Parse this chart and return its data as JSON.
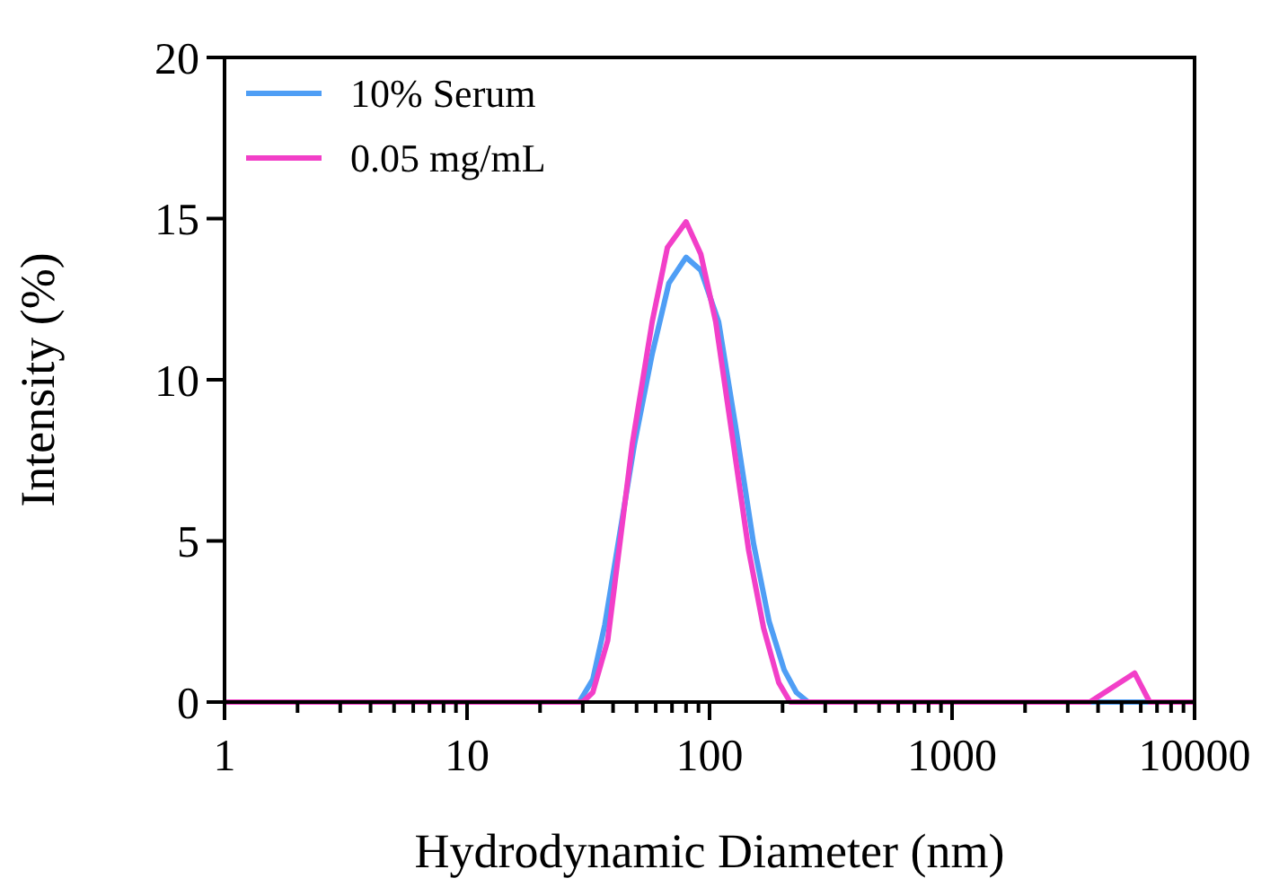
{
  "chart_data": {
    "type": "line",
    "xlabel": "Hydrodynamic Diameter (nm)",
    "ylabel": "Intensity (%)",
    "log": "x",
    "xlim": [
      1,
      10000
    ],
    "ylim": [
      0,
      20
    ],
    "xticks": [
      1,
      {
        "value": 2,
        "label": null
      },
      {
        "value": 3,
        "label": null
      },
      {
        "value": 4,
        "label": null
      },
      {
        "value": 5,
        "label": null
      },
      {
        "value": 6,
        "label": null
      },
      {
        "value": 7,
        "label": null
      },
      {
        "value": 8,
        "label": null
      },
      {
        "value": 9,
        "label": null
      },
      10,
      {
        "value": 20,
        "label": null
      },
      {
        "value": 30,
        "label": null
      },
      {
        "value": 40,
        "label": null
      },
      {
        "value": 50,
        "label": null
      },
      {
        "value": 60,
        "label": null
      },
      {
        "value": 70,
        "label": null
      },
      {
        "value": 80,
        "label": null
      },
      {
        "value": 90,
        "label": null
      },
      100,
      {
        "value": 200,
        "label": null
      },
      {
        "value": 300,
        "label": null
      },
      {
        "value": 400,
        "label": null
      },
      {
        "value": 500,
        "label": null
      },
      {
        "value": 600,
        "label": null
      },
      {
        "value": 700,
        "label": null
      },
      {
        "value": 800,
        "label": null
      },
      {
        "value": 900,
        "label": null
      },
      1000,
      {
        "value": 2000,
        "label": null
      },
      {
        "value": 3000,
        "label": null
      },
      {
        "value": 4000,
        "label": null
      },
      {
        "value": 5000,
        "label": null
      },
      {
        "value": 6000,
        "label": null
      },
      {
        "value": 7000,
        "label": null
      },
      {
        "value": 8000,
        "label": null
      },
      {
        "value": 9000,
        "label": null
      },
      10000
    ],
    "yticks": [
      0,
      5,
      10,
      15,
      20
    ],
    "grid": false,
    "legend": "top left",
    "marker": "none",
    "line_style": "solid",
    "series": [
      {
        "name": "10% Serum",
        "color": "#4f9ef5",
        "x": [
          1,
          29,
          33,
          37,
          49,
          58,
          68,
          80,
          92,
          109,
          129,
          152,
          176,
          203,
          228,
          255,
          10000
        ],
        "values": [
          0,
          0,
          0.7,
          2.4,
          8,
          10.8,
          13,
          13.8,
          13.4,
          11.8,
          8.4,
          4.9,
          2.5,
          1,
          0.3,
          0,
          0
        ]
      },
      {
        "name": "0.05 mg/mL",
        "color": "#f23fc8",
        "x": [
          1,
          30,
          33,
          38,
          48,
          58,
          67,
          80,
          92,
          106,
          126,
          145,
          167,
          193,
          215,
          3700,
          5660,
          6530,
          10000
        ],
        "values": [
          0,
          0,
          0.3,
          1.9,
          8,
          11.8,
          14.1,
          14.9,
          13.9,
          11.8,
          7.9,
          4.7,
          2.3,
          0.6,
          0,
          0,
          0.9,
          0,
          0
        ]
      }
    ]
  }
}
